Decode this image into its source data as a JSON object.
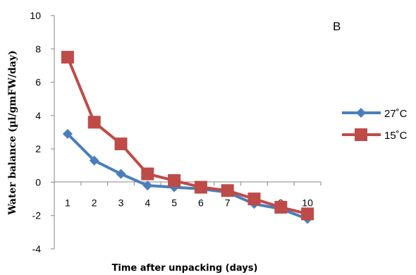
{
  "chart_data": {
    "type": "line",
    "panel_label": "B",
    "xlabel": "Time after unpacking (days)",
    "ylabel": "Water balance (µl/gmFW/day)",
    "categories": [
      "1",
      "2",
      "3",
      "4",
      "5",
      "6",
      "7",
      "8",
      "9",
      "10"
    ],
    "ylim": [
      -4,
      10
    ],
    "yticks": [
      "10",
      "8",
      "6",
      "4",
      "2",
      "0",
      "-2",
      "-4"
    ],
    "ytick_values": [
      10,
      8,
      6,
      4,
      2,
      0,
      -2,
      -4
    ],
    "x_tick_labels_position": "above zero line",
    "grid": false,
    "legend_position": "right",
    "series": [
      {
        "name": "27˚C",
        "color": "#4a7ebb",
        "marker": "diamond",
        "values": [
          2.9,
          1.3,
          0.5,
          -0.2,
          -0.3,
          -0.4,
          -0.6,
          -1.3,
          -1.6,
          -2.2
        ]
      },
      {
        "name": "15˚C",
        "color": "#be4b48",
        "marker": "square",
        "values": [
          7.5,
          3.6,
          2.3,
          0.5,
          0.1,
          -0.3,
          -0.5,
          -1.0,
          -1.5,
          -1.9
        ]
      }
    ]
  }
}
